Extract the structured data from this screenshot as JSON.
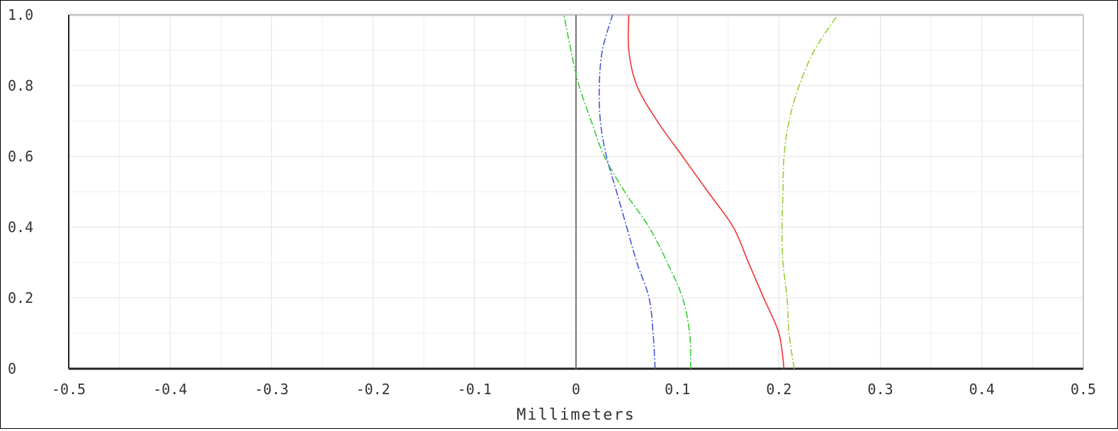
{
  "chart_data": {
    "type": "line",
    "title": "",
    "xlabel": "Millimeters",
    "ylabel": "",
    "xlim": [
      -0.5,
      0.5
    ],
    "ylim": [
      0,
      1.0
    ],
    "grid": true,
    "legend": "none",
    "xticks": [
      {
        "value": -0.5,
        "label": "-0.5"
      },
      {
        "value": -0.4,
        "label": "-0.4"
      },
      {
        "value": -0.3,
        "label": "-0.3"
      },
      {
        "value": -0.2,
        "label": "-0.2"
      },
      {
        "value": -0.1,
        "label": "-0.1"
      },
      {
        "value": 0.0,
        "label": "0"
      },
      {
        "value": 0.1,
        "label": "0.1"
      },
      {
        "value": 0.2,
        "label": "0.2"
      },
      {
        "value": 0.3,
        "label": "0.3"
      },
      {
        "value": 0.4,
        "label": "0.4"
      },
      {
        "value": 0.5,
        "label": "0.5"
      }
    ],
    "yticks": [
      {
        "value": 0.0,
        "label": "0"
      },
      {
        "value": 0.2,
        "label": "0.2"
      },
      {
        "value": 0.4,
        "label": "0.4"
      },
      {
        "value": 0.6,
        "label": "0.6"
      },
      {
        "value": 0.8,
        "label": "0.8"
      },
      {
        "value": 1.0,
        "label": "1.0"
      }
    ],
    "series": [
      {
        "color": "#4455dd",
        "dash": "10 3 2 3",
        "points": [
          [
            0.078,
            0
          ],
          [
            0.076,
            0.1
          ],
          [
            0.072,
            0.2
          ],
          [
            0.06,
            0.3
          ],
          [
            0.05,
            0.4
          ],
          [
            0.04,
            0.5
          ],
          [
            0.03,
            0.6
          ],
          [
            0.024,
            0.7
          ],
          [
            0.023,
            0.8
          ],
          [
            0.026,
            0.9
          ],
          [
            0.036,
            1.0
          ]
        ]
      },
      {
        "color": "#33cc33",
        "dash": "10 3 2 3",
        "points": [
          [
            0.113,
            0
          ],
          [
            0.112,
            0.1
          ],
          [
            0.105,
            0.2
          ],
          [
            0.09,
            0.3
          ],
          [
            0.072,
            0.4
          ],
          [
            0.048,
            0.5
          ],
          [
            0.028,
            0.6
          ],
          [
            0.015,
            0.7
          ],
          [
            0.003,
            0.8
          ],
          [
            -0.005,
            0.9
          ],
          [
            -0.012,
            1.0
          ]
        ]
      },
      {
        "color": "#ee3333",
        "dash": "",
        "points": [
          [
            0.205,
            0
          ],
          [
            0.2,
            0.1
          ],
          [
            0.185,
            0.2
          ],
          [
            0.17,
            0.3
          ],
          [
            0.155,
            0.4
          ],
          [
            0.13,
            0.5
          ],
          [
            0.105,
            0.6
          ],
          [
            0.08,
            0.7
          ],
          [
            0.06,
            0.8
          ],
          [
            0.052,
            0.9
          ],
          [
            0.052,
            1.0
          ]
        ]
      },
      {
        "color": "#99cc33",
        "dash": "10 3 2 3",
        "points": [
          [
            0.215,
            0
          ],
          [
            0.21,
            0.1
          ],
          [
            0.208,
            0.2
          ],
          [
            0.204,
            0.3
          ],
          [
            0.203,
            0.4
          ],
          [
            0.204,
            0.5
          ],
          [
            0.205,
            0.6
          ],
          [
            0.21,
            0.7
          ],
          [
            0.22,
            0.8
          ],
          [
            0.235,
            0.9
          ],
          [
            0.258,
            1.0
          ]
        ]
      }
    ]
  }
}
